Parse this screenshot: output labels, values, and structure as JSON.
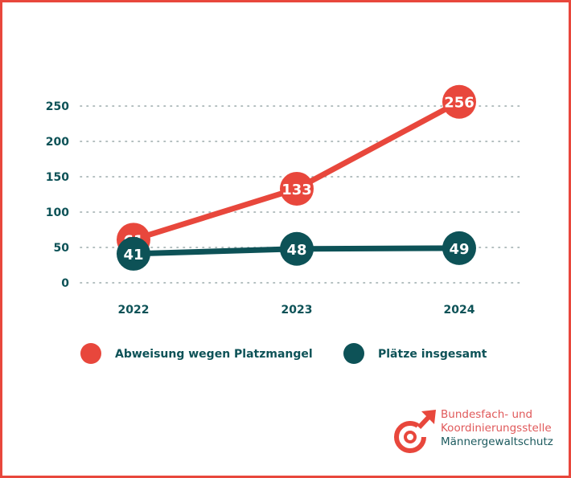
{
  "chart_data": {
    "type": "line",
    "categories": [
      "2022",
      "2023",
      "2024"
    ],
    "series": [
      {
        "name": "Abweisung wegen Platzmangel",
        "values": [
          61,
          133,
          256
        ],
        "color": "#e8473c"
      },
      {
        "name": "Plätze insgesamt",
        "values": [
          41,
          48,
          49
        ],
        "color": "#0d5257"
      }
    ],
    "yticks": [
      0,
      50,
      100,
      150,
      200,
      250
    ],
    "ylim": [
      0,
      250
    ],
    "grid": "dotted horizontal",
    "legend": "bottom",
    "title": "",
    "xlabel": "",
    "ylabel": ""
  },
  "logo": {
    "line1": "Bundesfach- und",
    "line2": "Koordinierungsstelle",
    "line3": "Männergewaltschutz",
    "icon": "male-symbol-icon",
    "color": "#e8473c"
  },
  "colors": {
    "border": "#e8473c",
    "text": "#0d5257"
  }
}
